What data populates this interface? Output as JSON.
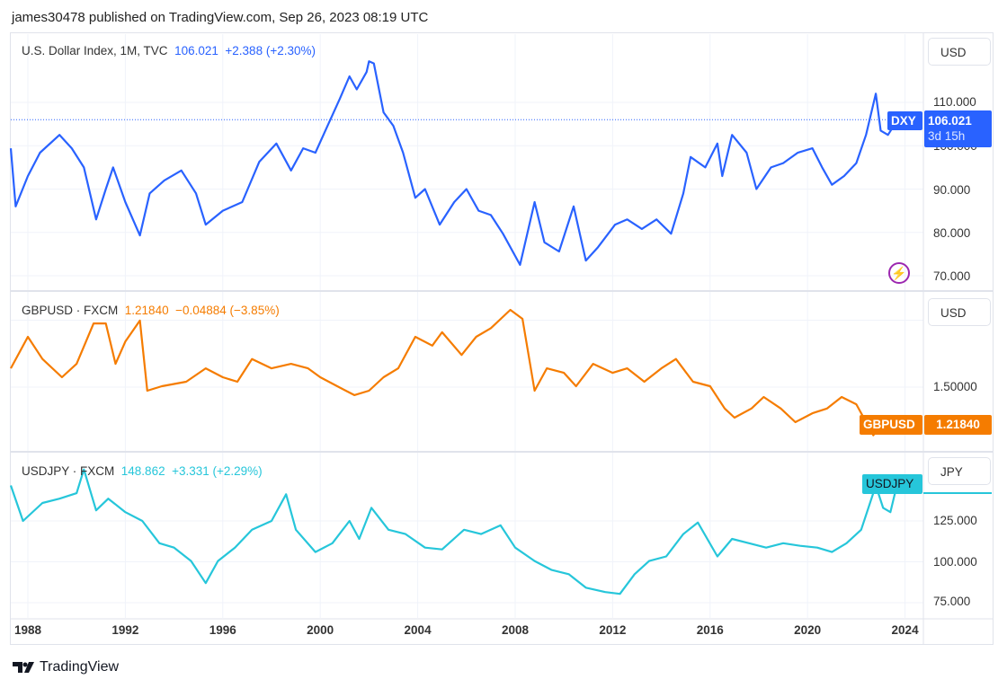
{
  "header": {
    "published": "james30478 published on TradingView.com, Sep 26, 2023 08:19 UTC"
  },
  "colors": {
    "dxy": "#2962ff",
    "gbpusd": "#f57c00",
    "usdjpy": "#26c6da"
  },
  "panes": [
    {
      "name": "U.S. Dollar Index, 1M, TVC",
      "price": "106.021",
      "change": "+2.388 (+2.30%)",
      "currency": "USD",
      "tag": "DXY",
      "tag_value": "106.021",
      "countdown": "3d 15h",
      "ticks": [
        "110.000",
        "100.000",
        "90.000",
        "80.000",
        "70.000"
      ],
      "icon": "lightning-icon"
    },
    {
      "name": "GBPUSD · FXCM",
      "price": "1.21840",
      "change": "−0.04884 (−3.85%)",
      "currency": "USD",
      "tag": "GBPUSD",
      "tag_value": "1.21840",
      "ticks": [
        "1.50000"
      ]
    },
    {
      "name": "USDJPY · FXCM",
      "price": "148.862",
      "change": "+3.331 (+2.29%)",
      "currency": "JPY",
      "tag": "USDJPY",
      "ticks": [
        "125.000",
        "100.000",
        "75.000"
      ]
    }
  ],
  "x_ticks": [
    "1988",
    "1992",
    "1996",
    "2000",
    "2004",
    "2008",
    "2012",
    "2016",
    "2020",
    "2024"
  ],
  "footer": {
    "brand": "TradingView"
  },
  "chart_data": [
    {
      "type": "line",
      "series": [
        {
          "name": "DXY",
          "x": [
            1987.3,
            1987.5,
            1988.0,
            1988.5,
            1989.3,
            1989.8,
            1990.3,
            1990.8,
            1991.2,
            1991.5,
            1992.0,
            1992.6,
            1993.0,
            1993.6,
            1994.3,
            1994.9,
            1995.3,
            1996.0,
            1996.8,
            1997.5,
            1998.2,
            1998.8,
            1999.3,
            1999.8,
            2000.3,
            2000.8,
            2001.2,
            2001.5,
            2001.9,
            2002.0,
            2002.2,
            2002.6,
            2003.0,
            2003.4,
            2003.9,
            2004.3,
            2004.9,
            2005.5,
            2006.0,
            2006.5,
            2007.0,
            2007.5,
            2008.2,
            2008.8,
            2009.2,
            2009.8,
            2010.4,
            2010.9,
            2011.4,
            2012.1,
            2012.6,
            2013.2,
            2013.8,
            2014.4,
            2014.9,
            2015.2,
            2015.8,
            2016.3,
            2016.5,
            2016.9,
            2017.5,
            2017.9,
            2018.5,
            2019.0,
            2019.6,
            2020.2,
            2020.6,
            2021.0,
            2021.5,
            2022.0,
            2022.4,
            2022.8,
            2023.0,
            2023.3,
            2023.7
          ],
          "y": [
            99.4,
            86,
            93,
            98.4,
            102.5,
            99.4,
            95,
            83,
            90,
            95,
            87,
            79.3,
            89,
            92,
            94.3,
            89,
            81.8,
            85,
            87,
            96.3,
            100.5,
            94.3,
            99.4,
            98.4,
            104.6,
            110.8,
            116,
            113,
            117,
            119.5,
            119,
            107.7,
            104.6,
            98.4,
            88,
            90,
            81.8,
            87,
            90,
            85,
            84,
            79.7,
            72.5,
            87,
            77.7,
            75.6,
            86,
            73.5,
            76.6,
            81.8,
            83,
            80.8,
            83,
            79.7,
            89,
            97.4,
            95,
            100.5,
            93,
            102.5,
            98.4,
            90,
            95,
            96,
            98.4,
            99.4,
            95,
            91,
            93,
            96,
            102.5,
            112,
            103.5,
            102.5,
            106.021
          ]
        }
      ],
      "ylim": [
        68,
        122
      ]
    },
    {
      "type": "line",
      "series": [
        {
          "name": "GBPUSD",
          "x": [
            1987.3,
            1988.0,
            1988.6,
            1989.4,
            1990.0,
            1990.7,
            1991.2,
            1991.6,
            1992.0,
            1992.6,
            1992.9,
            1993.5,
            1994.5,
            1995.3,
            1996.0,
            1996.6,
            1997.2,
            1998.0,
            1998.8,
            1999.5,
            2000.0,
            2000.7,
            2001.4,
            2002.0,
            2002.6,
            2003.2,
            2003.9,
            2004.6,
            2005.0,
            2005.8,
            2006.4,
            2007.0,
            2007.8,
            2008.3,
            2008.8,
            2009.3,
            2010.0,
            2010.5,
            2011.2,
            2012.0,
            2012.6,
            2013.3,
            2014.0,
            2014.6,
            2015.3,
            2016.0,
            2016.6,
            2017.0,
            2017.7,
            2018.2,
            2018.9,
            2019.5,
            2020.2,
            2020.8,
            2021.4,
            2022.0,
            2022.7,
            2023.3,
            2023.7
          ],
          "y": [
            1.64,
            1.876,
            1.71,
            1.574,
            1.674,
            1.976,
            1.976,
            1.674,
            1.84,
            1.997,
            1.473,
            1.507,
            1.54,
            1.64,
            1.574,
            1.54,
            1.71,
            1.64,
            1.674,
            1.64,
            1.574,
            1.507,
            1.44,
            1.473,
            1.574,
            1.64,
            1.876,
            1.81,
            1.91,
            1.74,
            1.876,
            1.94,
            2.077,
            2.01,
            1.473,
            1.64,
            1.607,
            1.507,
            1.674,
            1.607,
            1.64,
            1.54,
            1.64,
            1.71,
            1.54,
            1.507,
            1.34,
            1.272,
            1.34,
            1.426,
            1.34,
            1.238,
            1.305,
            1.34,
            1.426,
            1.372,
            1.14,
            1.272,
            1.2184
          ]
        }
      ],
      "ylim": [
        1.05,
        2.17
      ]
    },
    {
      "type": "line",
      "series": [
        {
          "name": "USDJPY",
          "x": [
            1987.3,
            1987.8,
            1988.6,
            1989.3,
            1990.0,
            1990.3,
            1990.8,
            1991.3,
            1992.0,
            1992.7,
            1993.4,
            1994.0,
            1994.7,
            1995.3,
            1995.8,
            1996.5,
            1997.2,
            1998.0,
            1998.6,
            1999.0,
            1999.8,
            2000.5,
            2001.2,
            2001.6,
            2002.1,
            2002.8,
            2003.5,
            2004.3,
            2005.0,
            2005.9,
            2006.6,
            2007.4,
            2008.0,
            2008.8,
            2009.5,
            2010.2,
            2010.9,
            2011.7,
            2012.3,
            2012.9,
            2013.5,
            2014.2,
            2014.9,
            2015.5,
            2016.3,
            2016.9,
            2017.6,
            2018.3,
            2019.0,
            2019.7,
            2020.4,
            2021.0,
            2021.6,
            2022.2,
            2022.8,
            2023.1,
            2023.4,
            2023.7
          ],
          "y": [
            146.7,
            125,
            136,
            138.6,
            142,
            156.5,
            131.5,
            138.6,
            130.4,
            125,
            111.4,
            108.7,
            100.5,
            87,
            100.5,
            108.7,
            119.6,
            125,
            141.3,
            119.6,
            106,
            111.4,
            125,
            114,
            133,
            119.6,
            117,
            108.7,
            107.6,
            119.6,
            117,
            122.3,
            108.7,
            100.5,
            95,
            92.4,
            84.2,
            81.5,
            80.4,
            92.4,
            100.5,
            103.3,
            117,
            124,
            103.3,
            114,
            111.4,
            108.7,
            111.4,
            109.8,
            108.7,
            106,
            111.4,
            119.6,
            146.7,
            133,
            130.4,
            148.862
          ]
        }
      ],
      "ylim": [
        65,
        165
      ]
    }
  ]
}
